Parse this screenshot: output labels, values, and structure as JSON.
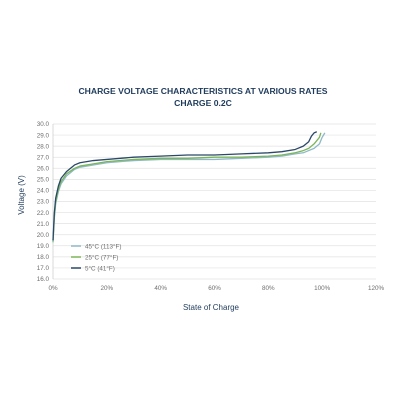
{
  "chart_data": {
    "type": "line",
    "title": "CHARGE VOLTAGE CHARACTERISTICS AT VARIOUS RATES",
    "subtitle": "CHARGE 0.2C",
    "xlabel": "State of Charge",
    "ylabel": "Voltage (V)",
    "xlim": [
      0,
      120
    ],
    "ylim": [
      16.0,
      30.0
    ],
    "xticks": [
      0,
      20,
      40,
      60,
      80,
      100,
      120
    ],
    "xtick_labels": [
      "0%",
      "20%",
      "40%",
      "60%",
      "80%",
      "100%",
      "120%"
    ],
    "yticks": [
      16.0,
      17.0,
      18.0,
      19.0,
      20.0,
      21.0,
      22.0,
      23.0,
      24.0,
      25.0,
      26.0,
      27.0,
      28.0,
      29.0,
      30.0
    ],
    "ytick_labels": [
      "16.0",
      "17.0",
      "18.0",
      "19.0",
      "20.0",
      "21.0",
      "22.0",
      "23.0",
      "24.0",
      "25.0",
      "26.0",
      "27.0",
      "28.0",
      "29.0",
      "30.0"
    ],
    "grid": "horizontal",
    "legend_position": "bottom-left",
    "series": [
      {
        "name": "45°C (113°F)",
        "color": "#8fb8c8",
        "x": [
          0,
          0.5,
          1,
          2,
          3,
          5,
          8,
          10,
          15,
          20,
          30,
          40,
          50,
          60,
          70,
          80,
          85,
          90,
          93,
          95,
          97,
          99,
          100,
          101
        ],
        "y": [
          19.3,
          21.5,
          22.8,
          23.9,
          24.6,
          25.3,
          25.9,
          26.1,
          26.3,
          26.5,
          26.7,
          26.8,
          26.8,
          26.8,
          26.9,
          27.0,
          27.1,
          27.3,
          27.4,
          27.6,
          27.8,
          28.2,
          28.8,
          29.2
        ]
      },
      {
        "name": "25°C (77°F)",
        "color": "#7ab558",
        "x": [
          0,
          0.5,
          1,
          2,
          3,
          5,
          8,
          10,
          15,
          20,
          30,
          40,
          50,
          60,
          70,
          80,
          85,
          90,
          93,
          95,
          97,
          99,
          99.5
        ],
        "y": [
          19.4,
          21.7,
          23.0,
          24.1,
          24.8,
          25.5,
          26.0,
          26.2,
          26.4,
          26.6,
          26.8,
          26.9,
          26.9,
          27.0,
          27.0,
          27.1,
          27.2,
          27.4,
          27.6,
          27.8,
          28.2,
          28.8,
          29.2
        ]
      },
      {
        "name": "5°C (41°F)",
        "color": "#2a4869",
        "x": [
          0,
          0.5,
          1,
          2,
          3,
          5,
          8,
          10,
          15,
          20,
          30,
          40,
          50,
          60,
          70,
          80,
          85,
          90,
          93,
          95,
          96,
          97,
          98
        ],
        "y": [
          19.5,
          22.0,
          23.3,
          24.4,
          25.1,
          25.7,
          26.3,
          26.5,
          26.7,
          26.8,
          27.0,
          27.1,
          27.2,
          27.2,
          27.3,
          27.4,
          27.5,
          27.7,
          28.0,
          28.4,
          28.9,
          29.2,
          29.3
        ]
      }
    ]
  }
}
